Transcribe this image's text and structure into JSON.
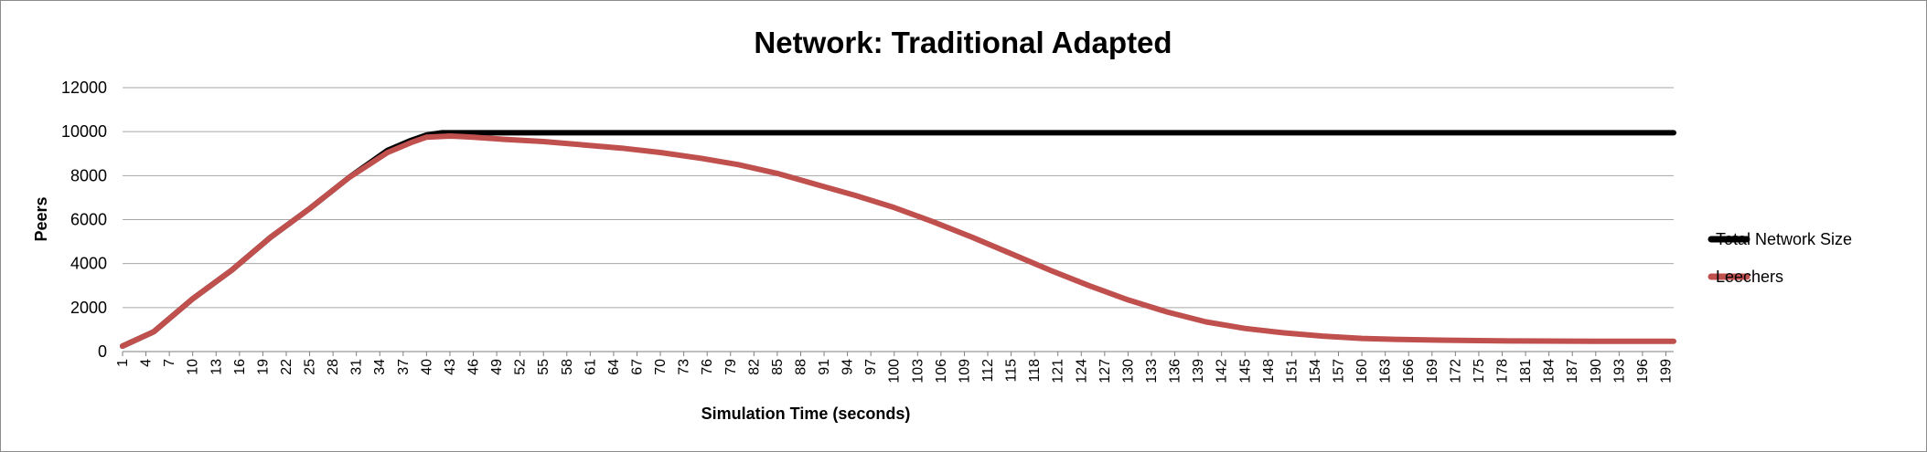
{
  "chart_data": {
    "type": "line",
    "title": "Network: Traditional Adapted",
    "xlabel": "Simulation Time (seconds)",
    "ylabel": "Peers",
    "ylim": [
      0,
      12000
    ],
    "yticks": [
      "0",
      "2000",
      "4000",
      "6000",
      "8000",
      "10000",
      "12000"
    ],
    "x_categories": [
      "1",
      "4",
      "7",
      "10",
      "13",
      "16",
      "19",
      "22",
      "25",
      "28",
      "31",
      "34",
      "37",
      "40",
      "43",
      "46",
      "49",
      "52",
      "55",
      "58",
      "61",
      "64",
      "67",
      "70",
      "73",
      "76",
      "79",
      "82",
      "85",
      "88",
      "91",
      "94",
      "97",
      "100",
      "103",
      "106",
      "109",
      "112",
      "115",
      "118",
      "121",
      "124",
      "127",
      "130",
      "133",
      "136",
      "139",
      "142",
      "145",
      "148",
      "151",
      "154",
      "157",
      "160",
      "163",
      "166",
      "169",
      "172",
      "175",
      "178",
      "181",
      "184",
      "187",
      "190",
      "193",
      "196",
      "199"
    ],
    "xlim": [
      1,
      200
    ],
    "grid": true,
    "legend_position": "right",
    "series": [
      {
        "name": "Total Network Size",
        "color": "#000000",
        "points": [
          [
            1,
            250
          ],
          [
            5,
            900
          ],
          [
            10,
            2400
          ],
          [
            15,
            3700
          ],
          [
            20,
            5200
          ],
          [
            25,
            6500
          ],
          [
            30,
            7900
          ],
          [
            35,
            9150
          ],
          [
            38,
            9600
          ],
          [
            40,
            9850
          ],
          [
            42,
            9950
          ],
          [
            45,
            9950
          ],
          [
            50,
            9950
          ],
          [
            100,
            9950
          ],
          [
            150,
            9950
          ],
          [
            200,
            9950
          ]
        ]
      },
      {
        "name": "Leechers",
        "color": "#c0504d",
        "points": [
          [
            1,
            250
          ],
          [
            5,
            900
          ],
          [
            10,
            2400
          ],
          [
            15,
            3700
          ],
          [
            20,
            5200
          ],
          [
            25,
            6500
          ],
          [
            30,
            7900
          ],
          [
            35,
            9050
          ],
          [
            38,
            9500
          ],
          [
            40,
            9750
          ],
          [
            43,
            9800
          ],
          [
            46,
            9750
          ],
          [
            50,
            9650
          ],
          [
            55,
            9550
          ],
          [
            60,
            9400
          ],
          [
            65,
            9250
          ],
          [
            70,
            9050
          ],
          [
            75,
            8800
          ],
          [
            80,
            8500
          ],
          [
            85,
            8100
          ],
          [
            90,
            7600
          ],
          [
            95,
            7100
          ],
          [
            100,
            6550
          ],
          [
            105,
            5900
          ],
          [
            110,
            5200
          ],
          [
            115,
            4450
          ],
          [
            120,
            3700
          ],
          [
            125,
            3000
          ],
          [
            130,
            2350
          ],
          [
            135,
            1800
          ],
          [
            140,
            1350
          ],
          [
            145,
            1050
          ],
          [
            150,
            850
          ],
          [
            155,
            700
          ],
          [
            160,
            600
          ],
          [
            165,
            550
          ],
          [
            170,
            520
          ],
          [
            175,
            500
          ],
          [
            180,
            480
          ],
          [
            190,
            470
          ],
          [
            200,
            470
          ]
        ]
      }
    ]
  }
}
